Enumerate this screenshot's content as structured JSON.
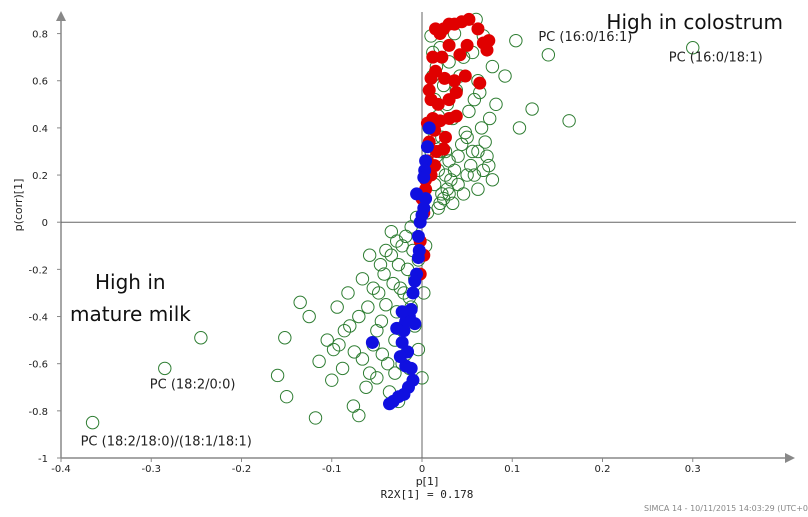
{
  "chart_data": {
    "type": "scatter",
    "xlabel": "p[1]",
    "ylabel": "p(corr)[1]",
    "xlim": [
      -0.4,
      0.4
    ],
    "ylim": [
      -1,
      0.9
    ],
    "x_ticks": [
      "-0.4",
      "-0.3",
      "-0.2",
      "-0.1",
      "0",
      "0.1",
      "0.2",
      "0.3"
    ],
    "y_ticks": [
      "-1",
      "-0.8",
      "-0.6",
      "-0.4",
      "-0.2",
      "0",
      "0.2",
      "0.4",
      "0.6",
      "0.8"
    ],
    "grid": false,
    "r2x_label": "R2X[1] = 0.178",
    "region_labels": {
      "colostrum": "High in colostrum",
      "mature_line1": "High in",
      "mature_line2": "mature milk"
    },
    "footer": "SIMCA 14 - 10/11/2015 14:03:29 (UTC+0",
    "annotations": [
      {
        "text": "PC (16:0/16:1)",
        "x": 0.14,
        "y": 0.71
      },
      {
        "text": "PC (16:0/18:1)",
        "x": 0.3,
        "y": 0.74
      },
      {
        "text": "PC (18:2/0:0)",
        "x": -0.285,
        "y": -0.62
      },
      {
        "text": "PC (18:2/18:0)/(18:1/18:1)",
        "x": -0.365,
        "y": -0.85
      }
    ],
    "colors": {
      "other": "#2e7d32",
      "colostrum": "#e00000",
      "mature": "#1010e0"
    },
    "series": [
      {
        "name": "",
        "style": "open-circle",
        "points": [
          [
            0.14,
            0.71
          ],
          [
            0.3,
            0.74
          ],
          [
            0.163,
            0.43
          ],
          [
            0.122,
            0.48
          ],
          [
            0.108,
            0.4
          ],
          [
            0.104,
            0.77
          ],
          [
            0.082,
            0.5
          ],
          [
            0.092,
            0.62
          ],
          [
            0.075,
            0.44
          ],
          [
            0.078,
            0.66
          ],
          [
            0.068,
            0.79
          ],
          [
            0.062,
            0.6
          ],
          [
            0.058,
            0.52
          ],
          [
            0.052,
            0.47
          ],
          [
            0.048,
            0.38
          ],
          [
            0.044,
            0.33
          ],
          [
            0.04,
            0.28
          ],
          [
            0.036,
            0.22
          ],
          [
            0.032,
            0.18
          ],
          [
            0.028,
            0.14
          ],
          [
            0.024,
            0.1
          ],
          [
            0.02,
            0.08
          ],
          [
            0.016,
            0.28
          ],
          [
            0.012,
            0.72
          ],
          [
            0.01,
            0.79
          ],
          [
            0.012,
            0.62
          ],
          [
            0.014,
            0.52
          ],
          [
            0.018,
            0.45
          ],
          [
            0.022,
            0.36
          ],
          [
            0.026,
            0.3
          ],
          [
            0.03,
            0.26
          ],
          [
            0.034,
            0.44
          ],
          [
            0.038,
            0.56
          ],
          [
            0.042,
            0.62
          ],
          [
            0.046,
            0.7
          ],
          [
            0.05,
            0.36
          ],
          [
            0.054,
            0.24
          ],
          [
            0.058,
            0.2
          ],
          [
            0.062,
            0.3
          ],
          [
            0.066,
            0.4
          ],
          [
            0.07,
            0.34
          ],
          [
            0.074,
            0.24
          ],
          [
            0.078,
            0.18
          ],
          [
            0.064,
            0.55
          ],
          [
            0.056,
            0.72
          ],
          [
            0.06,
            0.86
          ],
          [
            0.036,
            0.8
          ],
          [
            0.03,
            0.68
          ],
          [
            0.024,
            0.58
          ],
          [
            0.028,
            0.5
          ],
          [
            0.018,
            0.22
          ],
          [
            0.014,
            0.16
          ],
          [
            0.02,
            0.3
          ],
          [
            0.026,
            0.2
          ],
          [
            0.03,
            0.12
          ],
          [
            0.034,
            0.08
          ],
          [
            0.04,
            0.16
          ],
          [
            0.046,
            0.12
          ],
          [
            0.05,
            0.2
          ],
          [
            0.056,
            0.3
          ],
          [
            0.062,
            0.14
          ],
          [
            0.068,
            0.22
          ],
          [
            0.072,
            0.28
          ],
          [
            0.018,
            0.06
          ],
          [
            0.022,
            0.12
          ],
          [
            0.01,
            0.3
          ],
          [
            0.008,
            0.4
          ],
          [
            0.014,
            0.36
          ],
          [
            0.016,
            0.66
          ],
          [
            0.02,
            0.74
          ],
          [
            -0.365,
            -0.85
          ],
          [
            -0.285,
            -0.62
          ],
          [
            -0.245,
            -0.49
          ],
          [
            -0.16,
            -0.65
          ],
          [
            -0.15,
            -0.74
          ],
          [
            -0.152,
            -0.49
          ],
          [
            -0.135,
            -0.34
          ],
          [
            -0.125,
            -0.4
          ],
          [
            -0.118,
            -0.83
          ],
          [
            -0.114,
            -0.59
          ],
          [
            -0.105,
            -0.5
          ],
          [
            -0.1,
            -0.67
          ],
          [
            -0.098,
            -0.54
          ],
          [
            -0.094,
            -0.36
          ],
          [
            -0.088,
            -0.62
          ],
          [
            -0.08,
            -0.44
          ],
          [
            -0.075,
            -0.55
          ],
          [
            -0.07,
            -0.4
          ],
          [
            -0.066,
            -0.58
          ],
          [
            -0.062,
            -0.7
          ],
          [
            -0.058,
            -0.64
          ],
          [
            -0.054,
            -0.52
          ],
          [
            -0.05,
            -0.46
          ],
          [
            -0.048,
            -0.3
          ],
          [
            -0.045,
            -0.42
          ],
          [
            -0.042,
            -0.22
          ],
          [
            -0.04,
            -0.35
          ],
          [
            -0.038,
            -0.6
          ],
          [
            -0.036,
            -0.72
          ],
          [
            -0.034,
            -0.14
          ],
          [
            -0.032,
            -0.26
          ],
          [
            -0.03,
            -0.5
          ],
          [
            -0.028,
            -0.38
          ],
          [
            -0.026,
            -0.18
          ],
          [
            -0.024,
            -0.28
          ],
          [
            -0.022,
            -0.1
          ],
          [
            -0.02,
            -0.44
          ],
          [
            -0.018,
            -0.06
          ],
          [
            -0.016,
            -0.2
          ],
          [
            -0.014,
            -0.32
          ],
          [
            -0.012,
            -0.02
          ],
          [
            -0.01,
            -0.12
          ],
          [
            -0.008,
            -0.24
          ],
          [
            -0.006,
            0.02
          ],
          [
            -0.004,
            -0.16
          ],
          [
            -0.07,
            -0.82
          ],
          [
            -0.076,
            -0.78
          ],
          [
            -0.05,
            -0.66
          ],
          [
            -0.044,
            -0.56
          ],
          [
            -0.06,
            -0.36
          ],
          [
            -0.054,
            -0.28
          ],
          [
            -0.046,
            -0.18
          ],
          [
            -0.04,
            -0.12
          ],
          [
            -0.034,
            -0.04
          ],
          [
            -0.028,
            -0.08
          ],
          [
            -0.02,
            -0.3
          ],
          [
            -0.016,
            -0.4
          ],
          [
            -0.012,
            -0.36
          ],
          [
            -0.008,
            -0.44
          ],
          [
            -0.004,
            -0.54
          ],
          [
            0.0,
            -0.66
          ],
          [
            0.002,
            -0.3
          ],
          [
            0.004,
            -0.1
          ],
          [
            0.006,
            0.04
          ],
          [
            -0.086,
            -0.46
          ],
          [
            -0.092,
            -0.52
          ],
          [
            -0.082,
            -0.3
          ],
          [
            -0.066,
            -0.24
          ],
          [
            -0.058,
            -0.14
          ],
          [
            -0.03,
            -0.64
          ],
          [
            -0.026,
            -0.76
          ],
          [
            -0.022,
            -0.6
          ],
          [
            -0.018,
            -0.56
          ],
          [
            -0.014,
            -0.62
          ]
        ]
      },
      {
        "name": "",
        "style": "filled-red",
        "points": [
          [
            0.015,
            0.82
          ],
          [
            0.02,
            0.8
          ],
          [
            0.024,
            0.82
          ],
          [
            0.03,
            0.84
          ],
          [
            0.036,
            0.84
          ],
          [
            0.044,
            0.85
          ],
          [
            0.052,
            0.86
          ],
          [
            0.062,
            0.82
          ],
          [
            0.068,
            0.76
          ],
          [
            0.072,
            0.73
          ],
          [
            0.074,
            0.77
          ],
          [
            0.05,
            0.75
          ],
          [
            0.042,
            0.71
          ],
          [
            0.03,
            0.75
          ],
          [
            0.022,
            0.7
          ],
          [
            0.064,
            0.59
          ],
          [
            0.048,
            0.62
          ],
          [
            0.036,
            0.6
          ],
          [
            0.025,
            0.61
          ],
          [
            0.015,
            0.64
          ],
          [
            0.01,
            0.61
          ],
          [
            0.03,
            0.52
          ],
          [
            0.038,
            0.55
          ],
          [
            0.018,
            0.5
          ],
          [
            0.01,
            0.52
          ],
          [
            0.012,
            0.44
          ],
          [
            0.02,
            0.43
          ],
          [
            0.03,
            0.44
          ],
          [
            0.038,
            0.45
          ],
          [
            0.014,
            0.39
          ],
          [
            0.026,
            0.36
          ],
          [
            0.008,
            0.34
          ],
          [
            0.016,
            0.3
          ],
          [
            0.024,
            0.31
          ],
          [
            0.006,
            0.26
          ],
          [
            0.014,
            0.24
          ],
          [
            0.01,
            0.2
          ],
          [
            0.004,
            0.14
          ],
          [
            0.002,
            0.04
          ],
          [
            -0.002,
            -0.08
          ],
          [
            -0.002,
            -0.22
          ],
          [
            0.008,
            0.56
          ],
          [
            0.012,
            0.7
          ],
          [
            0.006,
            0.42
          ],
          [
            0.004,
            0.18
          ],
          [
            0.0,
            0.1
          ],
          [
            0.002,
            -0.14
          ]
        ]
      },
      {
        "name": "",
        "style": "filled-blue",
        "points": [
          [
            0.008,
            0.4
          ],
          [
            0.006,
            0.32
          ],
          [
            0.004,
            0.26
          ],
          [
            0.003,
            0.22
          ],
          [
            0.002,
            0.19
          ],
          [
            0.004,
            0.1
          ],
          [
            0.002,
            0.06
          ],
          [
            0.0,
            0.03
          ],
          [
            -0.002,
            0.0
          ],
          [
            -0.004,
            -0.06
          ],
          [
            -0.003,
            -0.12
          ],
          [
            -0.004,
            -0.15
          ],
          [
            -0.006,
            -0.22
          ],
          [
            -0.008,
            -0.25
          ],
          [
            -0.01,
            -0.3
          ],
          [
            -0.012,
            -0.37
          ],
          [
            -0.008,
            -0.43
          ],
          [
            -0.014,
            -0.4
          ],
          [
            -0.018,
            -0.42
          ],
          [
            -0.02,
            -0.46
          ],
          [
            -0.022,
            -0.51
          ],
          [
            -0.016,
            -0.55
          ],
          [
            -0.018,
            -0.61
          ],
          [
            -0.012,
            -0.62
          ],
          [
            -0.01,
            -0.67
          ],
          [
            -0.015,
            -0.7
          ],
          [
            -0.02,
            -0.73
          ],
          [
            -0.026,
            -0.74
          ],
          [
            -0.032,
            -0.76
          ],
          [
            -0.036,
            -0.77
          ],
          [
            -0.028,
            -0.45
          ],
          [
            -0.055,
            -0.51
          ],
          [
            -0.024,
            -0.57
          ],
          [
            -0.022,
            -0.38
          ],
          [
            -0.006,
            0.12
          ]
        ]
      }
    ]
  }
}
